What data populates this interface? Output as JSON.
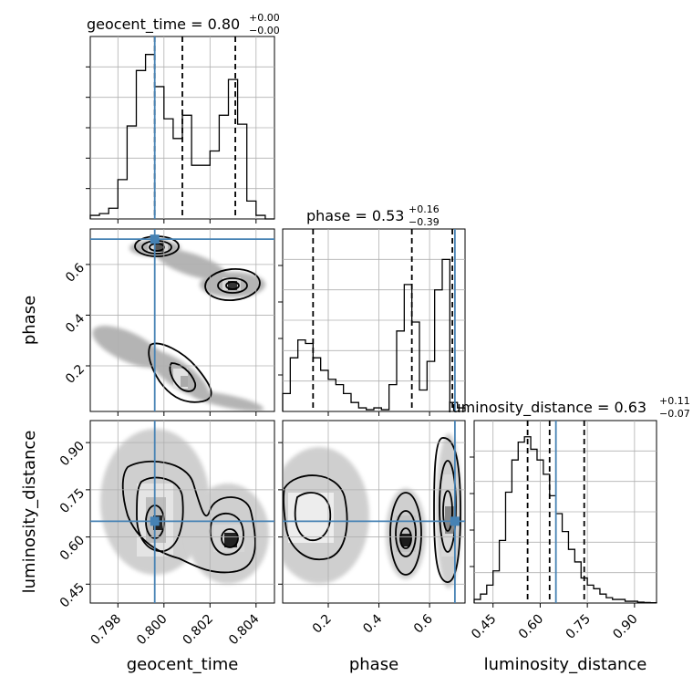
{
  "chart_data": {
    "type": "corner",
    "parameters": [
      "geocent_time",
      "phase",
      "luminosity_distance"
    ],
    "truth_color": "#4682b4",
    "grid": true,
    "panels": {
      "geocent_time": {
        "title_prefix": "geocent_time = ",
        "value": "0.80",
        "plus": "+0.00",
        "minus": "−0.00",
        "xlim": [
          0.7968,
          0.8048
        ],
        "xticks": [
          0.798,
          0.8,
          0.802,
          0.804
        ],
        "xtick_labels": [
          "0.798",
          "0.800",
          "0.802",
          "0.804"
        ],
        "truth": 0.7996,
        "quantiles": [
          0.7996,
          0.8008,
          0.8031
        ],
        "hist_edges_start": 0.7968,
        "hist_bin_width": 0.0004,
        "hist_counts": [
          0.02,
          0.03,
          0.06,
          0.22,
          0.52,
          0.83,
          0.92,
          0.74,
          0.56,
          0.45,
          0.58,
          0.3,
          0.3,
          0.38,
          0.58,
          0.78,
          0.53,
          0.1,
          0.02,
          0.0
        ]
      },
      "phase": {
        "title_prefix": "phase = ",
        "value": "0.53",
        "plus": "+0.16",
        "minus": "−0.39",
        "xlim": [
          0.02,
          0.74
        ],
        "xticks": [
          0.2,
          0.4,
          0.6
        ],
        "xtick_labels": [
          "0.2",
          "0.4",
          "0.6"
        ],
        "yticks": [
          0.2,
          0.4,
          0.6
        ],
        "ytick_labels": [
          "0.2",
          "0.4",
          "0.6"
        ],
        "truth": 0.7,
        "quantiles": [
          0.14,
          0.53,
          0.69
        ],
        "hist_edges_start": 0.02,
        "hist_bin_width": 0.03,
        "hist_counts": [
          0.1,
          0.3,
          0.4,
          0.38,
          0.3,
          0.23,
          0.18,
          0.15,
          0.1,
          0.05,
          0.02,
          0.01,
          0.02,
          0.01,
          0.15,
          0.45,
          0.71,
          0.5,
          0.12,
          0.28,
          0.68,
          0.85,
          0.05,
          0.02
        ]
      },
      "luminosity_distance": {
        "title_prefix": "luminosity_distance = ",
        "value": "0.63",
        "plus": "+0.11",
        "minus": "−0.07",
        "xlim": [
          0.39,
          0.97
        ],
        "xticks": [
          0.45,
          0.6,
          0.75,
          0.9
        ],
        "xtick_labels": [
          "0.45",
          "0.60",
          "0.75",
          "0.90"
        ],
        "yticks": [
          0.45,
          0.6,
          0.75,
          0.9
        ],
        "ytick_labels": [
          "0.45",
          "0.60",
          "0.75",
          "0.90"
        ],
        "truth": 0.65,
        "quantiles": [
          0.56,
          0.63,
          0.74
        ],
        "hist_edges_start": 0.39,
        "hist_bin_width": 0.02,
        "hist_counts": [
          0.02,
          0.05,
          0.1,
          0.18,
          0.35,
          0.62,
          0.8,
          0.9,
          0.93,
          0.86,
          0.8,
          0.72,
          0.6,
          0.5,
          0.4,
          0.3,
          0.23,
          0.14,
          0.1,
          0.08,
          0.05,
          0.03,
          0.02,
          0.02,
          0.01,
          0.01,
          0.005,
          0.003,
          0.002
        ]
      }
    },
    "axis_labels": {
      "x": [
        "geocent_time",
        "phase",
        "luminosity_distance"
      ],
      "y": [
        "phase",
        "luminosity_distance"
      ]
    }
  }
}
